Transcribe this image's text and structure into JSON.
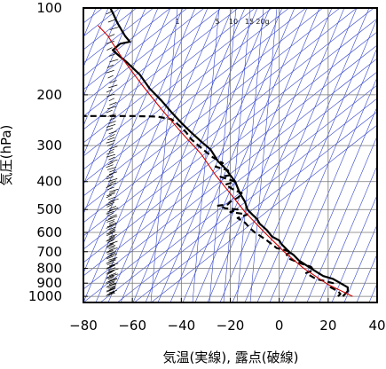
{
  "chart_data": {
    "type": "line",
    "title": "",
    "xlabel": "気温(実線), 露点(破線)",
    "ylabel": "気圧(hPa)",
    "x_scale": "linear",
    "y_scale": "log",
    "y_inverted": true,
    "xlim": [
      -80,
      40
    ],
    "ylim": [
      1050,
      100
    ],
    "x_ticks": [
      -80,
      -60,
      -40,
      -20,
      0,
      20,
      40
    ],
    "y_ticks": [
      100,
      200,
      300,
      400,
      500,
      600,
      700,
      800,
      900,
      1000
    ],
    "x_tick_labels": [
      "−80",
      "−60",
      "−40",
      "−20",
      "0",
      "20",
      "40"
    ],
    "y_tick_labels": [
      "100",
      "200",
      "300",
      "400",
      "500",
      "600",
      "700",
      "800",
      "900",
      "1000"
    ],
    "grid": true,
    "mixing_ratio_labels": [
      "1",
      "5",
      "10",
      "15",
      "20g"
    ],
    "series": [
      {
        "role": "temperature",
        "style": "solid",
        "color": "#000000",
        "points": [
          [
            26,
            1000
          ],
          [
            28,
            960
          ],
          [
            28,
            930
          ],
          [
            25,
            900
          ],
          [
            22,
            870
          ],
          [
            18,
            850
          ],
          [
            15,
            820
          ],
          [
            12,
            790
          ],
          [
            8,
            750
          ],
          [
            6,
            720
          ],
          [
            4,
            700
          ],
          [
            1,
            660
          ],
          [
            0,
            640
          ],
          [
            -3,
            620
          ],
          [
            -5,
            590
          ],
          [
            -8,
            560
          ],
          [
            -9,
            540
          ],
          [
            -11,
            520
          ],
          [
            -13,
            500
          ],
          [
            -14,
            470
          ],
          [
            -16,
            440
          ],
          [
            -17,
            420
          ],
          [
            -18,
            400
          ],
          [
            -20,
            380
          ],
          [
            -22,
            360
          ],
          [
            -25,
            340
          ],
          [
            -28,
            310
          ],
          [
            -32,
            290
          ],
          [
            -36,
            270
          ],
          [
            -40,
            250
          ],
          [
            -44,
            230
          ],
          [
            -48,
            210
          ],
          [
            -53,
            190
          ],
          [
            -57,
            170
          ],
          [
            -62,
            155
          ],
          [
            -66,
            145
          ],
          [
            -68,
            140
          ],
          [
            -65,
            133
          ],
          [
            -61,
            131
          ],
          [
            -63,
            125
          ],
          [
            -66,
            113
          ],
          [
            -68,
            104
          ],
          [
            -69,
            100
          ]
        ]
      },
      {
        "role": "dew_point",
        "style": "dashed",
        "color": "#000000",
        "points": [
          [
            24,
            1000
          ],
          [
            25,
            980
          ],
          [
            24,
            960
          ],
          [
            21,
            930
          ],
          [
            22,
            900
          ],
          [
            15,
            870
          ],
          [
            13,
            850
          ],
          [
            11,
            830
          ],
          [
            14,
            810
          ],
          [
            13,
            790
          ],
          [
            9,
            770
          ],
          [
            4,
            740
          ],
          [
            3,
            715
          ],
          [
            5,
            700
          ],
          [
            -1,
            680
          ],
          [
            -3,
            660
          ],
          [
            -5,
            640
          ],
          [
            -8,
            615
          ],
          [
            -10,
            600
          ],
          [
            -12,
            580
          ],
          [
            -14,
            555
          ],
          [
            -17,
            535
          ],
          [
            -13,
            520
          ],
          [
            -20,
            510
          ],
          [
            -17,
            500
          ],
          [
            -22,
            495
          ],
          [
            -25,
            485
          ],
          [
            -21,
            480
          ],
          [
            -20,
            470
          ],
          [
            -17,
            455
          ],
          [
            -15,
            440
          ],
          [
            -19,
            425
          ],
          [
            -22,
            410
          ],
          [
            -18,
            400
          ],
          [
            -24,
            385
          ],
          [
            -20,
            380
          ],
          [
            -21,
            365
          ],
          [
            -26,
            355
          ],
          [
            -23,
            345
          ],
          [
            -27,
            330
          ],
          [
            -30,
            315
          ],
          [
            -33,
            300
          ],
          [
            -36,
            285
          ],
          [
            -38,
            270
          ],
          [
            -41,
            255
          ],
          [
            -44,
            243
          ],
          [
            -50,
            238
          ],
          [
            -60,
            237
          ],
          [
            -70,
            237
          ],
          [
            -80,
            237
          ]
        ]
      },
      {
        "role": "reference_profile",
        "style": "solid",
        "color": "#cc0000",
        "points": [
          [
            30,
            1000
          ],
          [
            20,
            910
          ],
          [
            10,
            800
          ],
          [
            2,
            700
          ],
          [
            -6,
            600
          ],
          [
            -14,
            510
          ],
          [
            -20,
            440
          ],
          [
            -26,
            380
          ],
          [
            -32,
            320
          ],
          [
            -40,
            270
          ],
          [
            -48,
            225
          ],
          [
            -56,
            185
          ],
          [
            -64,
            150
          ],
          [
            -70,
            125
          ],
          [
            -74,
            115
          ]
        ]
      }
    ]
  }
}
